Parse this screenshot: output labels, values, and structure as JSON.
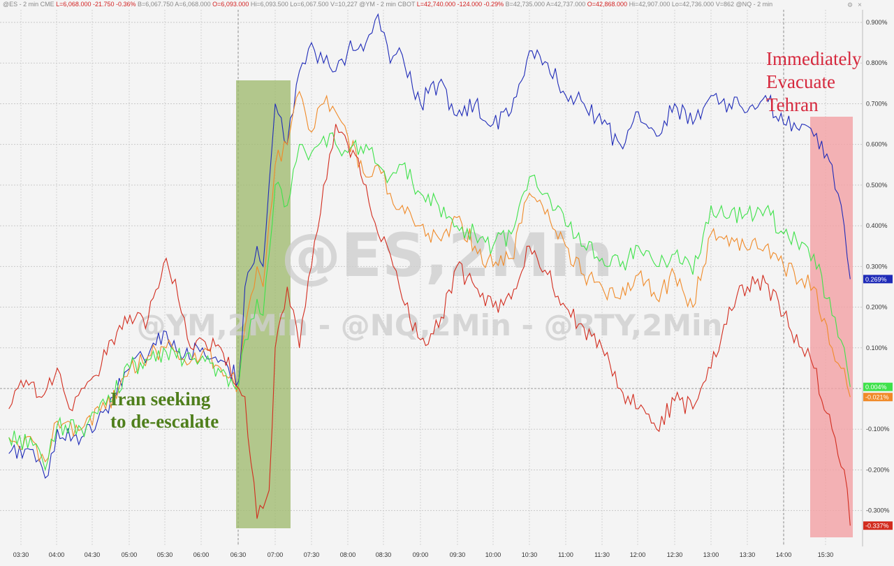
{
  "header": {
    "parts": [
      {
        "text": "@ES - 2 min  CME",
        "color": "#888888"
      },
      {
        "text": "L=6,068.000  -21.750  -0.36%",
        "color": "#d21f1f"
      },
      {
        "text": "B=6,067.750  A=6,068.000",
        "color": "#888888"
      },
      {
        "text": "O=6,093.000",
        "color": "#d21f1f"
      },
      {
        "text": "Hi=6,093.500  Lo=6,067.500  V=10,227",
        "color": "#888888"
      },
      {
        "text": "@YM - 2 min  CBOT",
        "color": "#888888"
      },
      {
        "text": "L=42,740.000  -124.000  -0.29%",
        "color": "#d21f1f"
      },
      {
        "text": "B=42,735.000  A=42,737.000",
        "color": "#888888"
      },
      {
        "text": "O=42,868.000",
        "color": "#d21f1f"
      },
      {
        "text": "Hi=42,907.000  Lo=42,736.000  V=862  @NQ - 2 min",
        "color": "#888888"
      }
    ]
  },
  "watermark": {
    "main": "@ES,2Min",
    "sub": "@YM,2Min - @NQ,2Min - @RTY,2Min"
  },
  "annotations": {
    "left": {
      "lines": [
        "Iran seeking",
        "to de-escalate"
      ],
      "color": "#4f7f1c",
      "shade_start": "06:30",
      "shade_end": "07:14",
      "shade_color": "#9cb86a"
    },
    "right": {
      "lines": [
        "Immediately",
        "Evacuate",
        "Tehran"
      ],
      "color": "#d6283d",
      "shade_start": "15:10",
      "shade_end": "15:40",
      "shade_color": "#f2a0a4"
    }
  },
  "chart_data": {
    "type": "line",
    "x_ticks": [
      "03:30",
      "04:00",
      "04:30",
      "05:00",
      "05:30",
      "06:00",
      "06:30",
      "07:00",
      "07:30",
      "08:00",
      "08:30",
      "09:00",
      "09:30",
      "10:00",
      "10:30",
      "11:00",
      "11:30",
      "12:00",
      "12:30",
      "13:00",
      "13:30",
      "14:00",
      "15:30"
    ],
    "y_ticks": [
      "0.900%",
      "0.800%",
      "0.700%",
      "0.600%",
      "0.500%",
      "0.400%",
      "0.300%",
      "0.200%",
      "0.100%",
      "-0.100%",
      "-0.200%",
      "-0.300%"
    ],
    "ylim": [
      -0.35,
      0.93
    ],
    "series": [
      {
        "name": "@ES",
        "color": "#1f2bb8",
        "last_label": "0.269%",
        "points": [
          [
            "03:20",
            -0.16
          ],
          [
            "03:40",
            -0.15
          ],
          [
            "03:50",
            -0.22
          ],
          [
            "04:00",
            -0.1
          ],
          [
            "04:20",
            -0.12
          ],
          [
            "04:40",
            -0.05
          ],
          [
            "05:00",
            0.05
          ],
          [
            "05:15",
            0.08
          ],
          [
            "05:30",
            0.14
          ],
          [
            "05:45",
            0.08
          ],
          [
            "06:00",
            0.1
          ],
          [
            "06:15",
            0.07
          ],
          [
            "06:30",
            0.02
          ],
          [
            "06:35",
            0.25
          ],
          [
            "06:45",
            0.35
          ],
          [
            "06:50",
            0.3
          ],
          [
            "07:00",
            0.7
          ],
          [
            "07:10",
            0.6
          ],
          [
            "07:20",
            0.78
          ],
          [
            "07:30",
            0.85
          ],
          [
            "07:40",
            0.8
          ],
          [
            "07:50",
            0.78
          ],
          [
            "08:00",
            0.83
          ],
          [
            "08:15",
            0.85
          ],
          [
            "08:25",
            0.92
          ],
          [
            "08:35",
            0.8
          ],
          [
            "08:45",
            0.82
          ],
          [
            "09:00",
            0.7
          ],
          [
            "09:15",
            0.75
          ],
          [
            "09:30",
            0.67
          ],
          [
            "09:45",
            0.7
          ],
          [
            "10:00",
            0.65
          ],
          [
            "10:15",
            0.68
          ],
          [
            "10:30",
            0.83
          ],
          [
            "10:45",
            0.8
          ],
          [
            "11:00",
            0.72
          ],
          [
            "11:15",
            0.7
          ],
          [
            "11:30",
            0.65
          ],
          [
            "11:45",
            0.6
          ],
          [
            "12:00",
            0.68
          ],
          [
            "12:15",
            0.62
          ],
          [
            "12:30",
            0.7
          ],
          [
            "12:45",
            0.65
          ],
          [
            "13:00",
            0.72
          ],
          [
            "13:15",
            0.7
          ],
          [
            "13:30",
            0.68
          ],
          [
            "13:45",
            0.72
          ],
          [
            "14:00",
            0.65
          ],
          [
            "14:15",
            0.65
          ],
          [
            "14:25",
            0.62
          ],
          [
            "14:40",
            0.55
          ],
          [
            "14:50",
            0.4
          ],
          [
            "14:55",
            0.269
          ]
        ]
      },
      {
        "name": "@YM",
        "color": "#f08a28",
        "last_label": "-0.021%",
        "points": [
          [
            "03:20",
            -0.12
          ],
          [
            "03:40",
            -0.13
          ],
          [
            "03:50",
            -0.18
          ],
          [
            "04:00",
            -0.08
          ],
          [
            "04:20",
            -0.1
          ],
          [
            "04:40",
            -0.05
          ],
          [
            "05:00",
            0.05
          ],
          [
            "05:15",
            0.08
          ],
          [
            "05:30",
            0.1
          ],
          [
            "05:45",
            0.07
          ],
          [
            "06:00",
            0.09
          ],
          [
            "06:15",
            0.05
          ],
          [
            "06:30",
            0.01
          ],
          [
            "06:35",
            0.15
          ],
          [
            "06:45",
            0.3
          ],
          [
            "06:50",
            0.25
          ],
          [
            "07:00",
            0.55
          ],
          [
            "07:10",
            0.6
          ],
          [
            "07:20",
            0.73
          ],
          [
            "07:30",
            0.63
          ],
          [
            "07:40",
            0.7
          ],
          [
            "07:50",
            0.68
          ],
          [
            "08:00",
            0.62
          ],
          [
            "08:15",
            0.52
          ],
          [
            "08:25",
            0.55
          ],
          [
            "08:35",
            0.48
          ],
          [
            "08:45",
            0.45
          ],
          [
            "09:00",
            0.4
          ],
          [
            "09:15",
            0.37
          ],
          [
            "09:30",
            0.42
          ],
          [
            "09:45",
            0.35
          ],
          [
            "10:00",
            0.3
          ],
          [
            "10:15",
            0.32
          ],
          [
            "10:30",
            0.48
          ],
          [
            "10:45",
            0.44
          ],
          [
            "11:00",
            0.35
          ],
          [
            "11:15",
            0.28
          ],
          [
            "11:30",
            0.25
          ],
          [
            "11:45",
            0.22
          ],
          [
            "12:00",
            0.28
          ],
          [
            "12:15",
            0.22
          ],
          [
            "12:30",
            0.28
          ],
          [
            "12:45",
            0.2
          ],
          [
            "13:00",
            0.38
          ],
          [
            "13:15",
            0.35
          ],
          [
            "13:30",
            0.34
          ],
          [
            "13:45",
            0.35
          ],
          [
            "14:00",
            0.3
          ],
          [
            "14:15",
            0.27
          ],
          [
            "14:25",
            0.25
          ],
          [
            "14:40",
            0.1
          ],
          [
            "14:50",
            0.05
          ],
          [
            "14:55",
            -0.021
          ]
        ]
      },
      {
        "name": "@NQ",
        "color": "#3ee24a",
        "last_label": "0.004%",
        "points": [
          [
            "03:20",
            -0.12
          ],
          [
            "03:40",
            -0.14
          ],
          [
            "03:50",
            -0.2
          ],
          [
            "04:00",
            -0.09
          ],
          [
            "04:20",
            -0.1
          ],
          [
            "04:40",
            -0.04
          ],
          [
            "05:00",
            0.05
          ],
          [
            "05:15",
            0.07
          ],
          [
            "05:30",
            0.09
          ],
          [
            "05:45",
            0.07
          ],
          [
            "06:00",
            0.08
          ],
          [
            "06:15",
            0.04
          ],
          [
            "06:30",
            0.01
          ],
          [
            "06:35",
            0.12
          ],
          [
            "06:45",
            0.22
          ],
          [
            "06:50",
            0.18
          ],
          [
            "07:00",
            0.5
          ],
          [
            "07:10",
            0.45
          ],
          [
            "07:20",
            0.6
          ],
          [
            "07:30",
            0.58
          ],
          [
            "07:40",
            0.62
          ],
          [
            "07:50",
            0.6
          ],
          [
            "08:00",
            0.58
          ],
          [
            "08:15",
            0.6
          ],
          [
            "08:25",
            0.55
          ],
          [
            "08:35",
            0.52
          ],
          [
            "08:45",
            0.55
          ],
          [
            "09:00",
            0.48
          ],
          [
            "09:15",
            0.45
          ],
          [
            "09:30",
            0.4
          ],
          [
            "09:45",
            0.38
          ],
          [
            "10:00",
            0.35
          ],
          [
            "10:15",
            0.38
          ],
          [
            "10:30",
            0.52
          ],
          [
            "10:45",
            0.48
          ],
          [
            "11:00",
            0.4
          ],
          [
            "11:15",
            0.35
          ],
          [
            "11:30",
            0.32
          ],
          [
            "11:45",
            0.3
          ],
          [
            "12:00",
            0.35
          ],
          [
            "12:15",
            0.3
          ],
          [
            "12:30",
            0.33
          ],
          [
            "12:45",
            0.28
          ],
          [
            "13:00",
            0.45
          ],
          [
            "13:15",
            0.42
          ],
          [
            "13:30",
            0.43
          ],
          [
            "13:45",
            0.44
          ],
          [
            "14:00",
            0.38
          ],
          [
            "14:15",
            0.36
          ],
          [
            "14:25",
            0.33
          ],
          [
            "14:40",
            0.18
          ],
          [
            "14:50",
            0.1
          ],
          [
            "14:55",
            0.004
          ]
        ]
      },
      {
        "name": "@RTY",
        "color": "#d22c1e",
        "last_label": "-0.337%",
        "points": [
          [
            "03:20",
            -0.05
          ],
          [
            "03:30",
            0.02
          ],
          [
            "03:45",
            -0.02
          ],
          [
            "04:00",
            0.05
          ],
          [
            "04:10",
            -0.05
          ],
          [
            "04:20",
            0.0
          ],
          [
            "04:30",
            0.03
          ],
          [
            "04:45",
            0.12
          ],
          [
            "05:00",
            0.18
          ],
          [
            "05:15",
            0.17
          ],
          [
            "05:30",
            0.32
          ],
          [
            "05:40",
            0.22
          ],
          [
            "05:50",
            0.1
          ],
          [
            "06:00",
            0.12
          ],
          [
            "06:15",
            0.1
          ],
          [
            "06:30",
            0.0
          ],
          [
            "06:35",
            -0.02
          ],
          [
            "06:45",
            -0.32
          ],
          [
            "06:55",
            -0.25
          ],
          [
            "07:00",
            0.1
          ],
          [
            "07:10",
            0.25
          ],
          [
            "07:20",
            0.1
          ],
          [
            "07:30",
            0.3
          ],
          [
            "07:40",
            0.5
          ],
          [
            "07:50",
            0.65
          ],
          [
            "08:00",
            0.6
          ],
          [
            "08:15",
            0.5
          ],
          [
            "08:25",
            0.38
          ],
          [
            "08:35",
            0.33
          ],
          [
            "08:45",
            0.22
          ],
          [
            "09:00",
            0.12
          ],
          [
            "09:15",
            0.15
          ],
          [
            "09:30",
            0.3
          ],
          [
            "09:45",
            0.25
          ],
          [
            "10:00",
            0.2
          ],
          [
            "10:15",
            0.22
          ],
          [
            "10:30",
            0.35
          ],
          [
            "10:45",
            0.28
          ],
          [
            "11:00",
            0.2
          ],
          [
            "11:15",
            0.15
          ],
          [
            "11:30",
            0.1
          ],
          [
            "11:45",
            0.0
          ],
          [
            "12:00",
            -0.05
          ],
          [
            "12:15",
            -0.1
          ],
          [
            "12:30",
            -0.03
          ],
          [
            "12:45",
            -0.05
          ],
          [
            "13:00",
            0.05
          ],
          [
            "13:15",
            0.2
          ],
          [
            "13:30",
            0.25
          ],
          [
            "13:45",
            0.26
          ],
          [
            "14:00",
            0.18
          ],
          [
            "14:15",
            0.1
          ],
          [
            "14:25",
            0.05
          ],
          [
            "14:40",
            -0.1
          ],
          [
            "14:50",
            -0.2
          ],
          [
            "14:55",
            -0.337
          ]
        ]
      }
    ]
  }
}
